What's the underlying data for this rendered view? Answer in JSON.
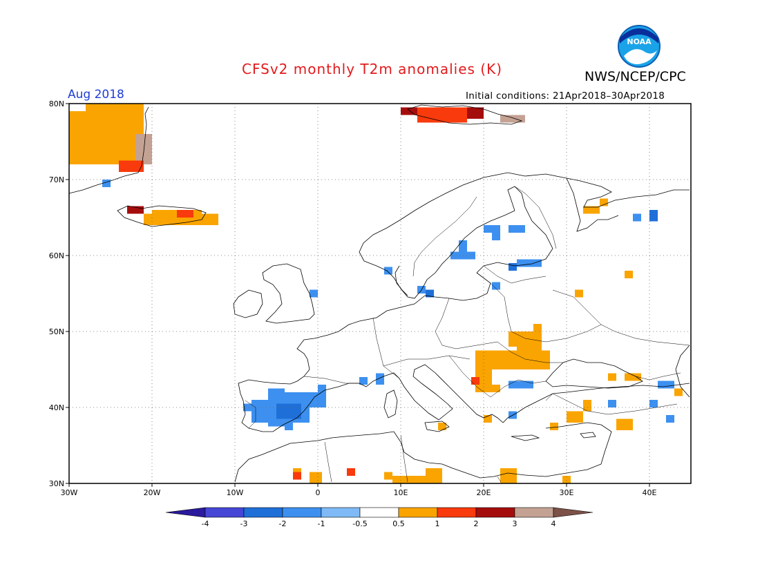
{
  "title": "CFSv2 monthly T2m anomalies (K)",
  "agency": "NWS/NCEP/CPC",
  "logo_text": "NOAA",
  "period": "Aug 2018",
  "initial_conditions": "Initial conditions: 21Apr2018–30Apr2018",
  "map": {
    "lon_range": [
      -30,
      45
    ],
    "lat_range": [
      30,
      80
    ],
    "x_ticks": [
      {
        "value": -30,
        "label": "30W"
      },
      {
        "value": -20,
        "label": "20W"
      },
      {
        "value": -10,
        "label": "10W"
      },
      {
        "value": 0,
        "label": "0"
      },
      {
        "value": 10,
        "label": "10E"
      },
      {
        "value": 20,
        "label": "20E"
      },
      {
        "value": 30,
        "label": "30E"
      },
      {
        "value": 40,
        "label": "40E"
      }
    ],
    "y_ticks": [
      {
        "value": 30,
        "label": "30N"
      },
      {
        "value": 40,
        "label": "40N"
      },
      {
        "value": 50,
        "label": "50N"
      },
      {
        "value": 60,
        "label": "60N"
      },
      {
        "value": 70,
        "label": "70N"
      },
      {
        "value": 80,
        "label": "80N"
      }
    ],
    "grid": "dotted"
  },
  "colorbar": {
    "labels": [
      "-4",
      "-3",
      "-2",
      "-1",
      "-0.5",
      "0.5",
      "1",
      "2",
      "3",
      "4"
    ],
    "colors": [
      "#2a1a9e",
      "#4646d6",
      "#1f6fd8",
      "#3d90ef",
      "#7fbaf6",
      "#ffffff",
      "#f9a400",
      "#f83a0c",
      "#a50d0d",
      "#c4a293",
      "#7c5147"
    ]
  },
  "anomalies": [
    {
      "lon": -30,
      "lat": 72,
      "w": 8,
      "h": 7,
      "v": 0.7
    },
    {
      "lon": -28,
      "lat": 75,
      "w": 5,
      "h": 5,
      "v": 0.7
    },
    {
      "lon": -26,
      "lat": 78,
      "w": 4,
      "h": 2,
      "v": 0.7
    },
    {
      "lon": -23,
      "lat": 76,
      "w": 2,
      "h": 4,
      "v": 0.7
    },
    {
      "lon": -22,
      "lat": 72,
      "w": 2,
      "h": 4,
      "v": 3.5
    },
    {
      "lon": -24,
      "lat": 71,
      "w": 3,
      "h": 1.5,
      "v": 1.5
    },
    {
      "lon": -26,
      "lat": 69,
      "w": 1,
      "h": 1,
      "v": -1.2
    },
    {
      "lon": -23,
      "lat": 65.5,
      "w": 2,
      "h": 1,
      "v": 2.5
    },
    {
      "lon": -21,
      "lat": 64,
      "w": 9,
      "h": 1.5,
      "v": 0.7
    },
    {
      "lon": -20,
      "lat": 65,
      "w": 6,
      "h": 1,
      "v": 0.7
    },
    {
      "lon": -17,
      "lat": 65,
      "w": 2,
      "h": 1,
      "v": 1.5
    },
    {
      "lon": 12,
      "lat": 77.5,
      "w": 6,
      "h": 2,
      "v": 1.5
    },
    {
      "lon": 18,
      "lat": 78,
      "w": 2,
      "h": 1.5,
      "v": 2.5
    },
    {
      "lon": 22,
      "lat": 77.5,
      "w": 3,
      "h": 1,
      "v": 3.5
    },
    {
      "lon": 10,
      "lat": 78.5,
      "w": 2,
      "h": 1,
      "v": 2.5
    },
    {
      "lon": 32,
      "lat": 65.5,
      "w": 2,
      "h": 1,
      "v": 0.7
    },
    {
      "lon": 34,
      "lat": 66.5,
      "w": 1,
      "h": 1,
      "v": 0.7
    },
    {
      "lon": 38,
      "lat": 64.5,
      "w": 1,
      "h": 1,
      "v": -1.5
    },
    {
      "lon": 40,
      "lat": 64.5,
      "w": 1,
      "h": 1.5,
      "v": -2.5
    },
    {
      "lon": 20,
      "lat": 63,
      "w": 2,
      "h": 1,
      "v": -1.2
    },
    {
      "lon": 17,
      "lat": 60,
      "w": 1,
      "h": 2,
      "v": -1.5
    },
    {
      "lon": 16,
      "lat": 59.5,
      "w": 3,
      "h": 1,
      "v": -1.2
    },
    {
      "lon": 21,
      "lat": 62,
      "w": 1,
      "h": 1.5,
      "v": -1.2
    },
    {
      "lon": 23,
      "lat": 63,
      "w": 2,
      "h": 1,
      "v": -1.2
    },
    {
      "lon": 24,
      "lat": 58.5,
      "w": 3,
      "h": 1,
      "v": -1.2
    },
    {
      "lon": 23,
      "lat": 58,
      "w": 1,
      "h": 1,
      "v": -2.5
    },
    {
      "lon": 37,
      "lat": 57,
      "w": 1,
      "h": 1,
      "v": 0.7
    },
    {
      "lon": 31,
      "lat": 54.5,
      "w": 1,
      "h": 1,
      "v": 0.7
    },
    {
      "lon": -1,
      "lat": 54.5,
      "w": 1,
      "h": 1,
      "v": -1.2
    },
    {
      "lon": 8,
      "lat": 57.5,
      "w": 1,
      "h": 1,
      "v": -1.2
    },
    {
      "lon": 12,
      "lat": 55,
      "w": 1,
      "h": 1,
      "v": -1.2
    },
    {
      "lon": 13,
      "lat": 54.5,
      "w": 1,
      "h": 1,
      "v": -2.5
    },
    {
      "lon": 21,
      "lat": 55.5,
      "w": 1,
      "h": 1,
      "v": -1.2
    },
    {
      "lon": 23,
      "lat": 48,
      "w": 4,
      "h": 2,
      "v": 0.7
    },
    {
      "lon": 26,
      "lat": 49,
      "w": 1,
      "h": 2,
      "v": 0.7
    },
    {
      "lon": 19,
      "lat": 45,
      "w": 9,
      "h": 2.5,
      "v": 0.7
    },
    {
      "lon": 24,
      "lat": 47,
      "w": 3,
      "h": 1,
      "v": 0.7
    },
    {
      "lon": 19,
      "lat": 42,
      "w": 2,
      "h": 3,
      "v": 0.7
    },
    {
      "lon": 18.5,
      "lat": 43,
      "w": 1,
      "h": 1,
      "v": 1.5
    },
    {
      "lon": 23,
      "lat": 42.5,
      "w": 3,
      "h": 1,
      "v": -1.2
    },
    {
      "lon": 21,
      "lat": 42,
      "w": 1,
      "h": 1,
      "v": 0.7
    },
    {
      "lon": 20,
      "lat": 38,
      "w": 1,
      "h": 1,
      "v": 0.7
    },
    {
      "lon": 23,
      "lat": 38.5,
      "w": 1,
      "h": 1,
      "v": -1.5
    },
    {
      "lon": 14.5,
      "lat": 37,
      "w": 1,
      "h": 1,
      "v": 0.7
    },
    {
      "lon": 30,
      "lat": 38,
      "w": 2,
      "h": 1.5,
      "v": 0.7
    },
    {
      "lon": 32,
      "lat": 39.5,
      "w": 1,
      "h": 1.5,
      "v": 0.7
    },
    {
      "lon": 36,
      "lat": 37,
      "w": 2,
      "h": 1.5,
      "v": 0.7
    },
    {
      "lon": 28,
      "lat": 37,
      "w": 1,
      "h": 1,
      "v": 0.7
    },
    {
      "lon": 35,
      "lat": 40,
      "w": 1,
      "h": 1,
      "v": -1.2
    },
    {
      "lon": 35,
      "lat": 43.5,
      "w": 1,
      "h": 1,
      "v": 0.7
    },
    {
      "lon": 37,
      "lat": 43.5,
      "w": 2,
      "h": 1,
      "v": 0.7
    },
    {
      "lon": 41,
      "lat": 42.5,
      "w": 2,
      "h": 1,
      "v": -1.2
    },
    {
      "lon": 43,
      "lat": 41.5,
      "w": 1,
      "h": 1,
      "v": 0.7
    },
    {
      "lon": 40,
      "lat": 40,
      "w": 1,
      "h": 1,
      "v": -1.2
    },
    {
      "lon": 42,
      "lat": 38,
      "w": 1,
      "h": 1,
      "v": -1.2
    },
    {
      "lon": -8,
      "lat": 38,
      "w": 2,
      "h": 3,
      "v": -1.2
    },
    {
      "lon": -6,
      "lat": 37.5,
      "w": 2,
      "h": 5,
      "v": -1.5
    },
    {
      "lon": -4,
      "lat": 38,
      "w": 3,
      "h": 4,
      "v": -1.2
    },
    {
      "lon": -5,
      "lat": 38.5,
      "w": 3,
      "h": 2,
      "v": -2.5
    },
    {
      "lon": -1,
      "lat": 40,
      "w": 2,
      "h": 2,
      "v": -1.2
    },
    {
      "lon": 0,
      "lat": 42,
      "w": 1,
      "h": 1,
      "v": -1.2
    },
    {
      "lon": -9,
      "lat": 39.5,
      "w": 1,
      "h": 1,
      "v": -1.2
    },
    {
      "lon": -4,
      "lat": 37,
      "w": 1,
      "h": 1,
      "v": -1.2
    },
    {
      "lon": 5,
      "lat": 43,
      "w": 1,
      "h": 1,
      "v": -1.2
    },
    {
      "lon": 7,
      "lat": 43,
      "w": 1,
      "h": 1.5,
      "v": -1.2
    },
    {
      "lon": -3,
      "lat": 31,
      "w": 1,
      "h": 1,
      "v": 0.7
    },
    {
      "lon": -3,
      "lat": 30.5,
      "w": 1,
      "h": 1,
      "v": 1.5
    },
    {
      "lon": -1,
      "lat": 30,
      "w": 1.5,
      "h": 1.5,
      "v": 0.7
    },
    {
      "lon": 3.5,
      "lat": 31,
      "w": 1,
      "h": 1,
      "v": 1.5
    },
    {
      "lon": 8,
      "lat": 30.5,
      "w": 1,
      "h": 1,
      "v": 0.7
    },
    {
      "lon": 9,
      "lat": 30,
      "w": 6,
      "h": 1,
      "v": 0.7
    },
    {
      "lon": 13,
      "lat": 30,
      "w": 2,
      "h": 2,
      "v": 0.7
    },
    {
      "lon": 22,
      "lat": 30,
      "w": 2,
      "h": 2,
      "v": 0.7
    },
    {
      "lon": 29.5,
      "lat": 30,
      "w": 1,
      "h": 1,
      "v": 0.7
    }
  ]
}
